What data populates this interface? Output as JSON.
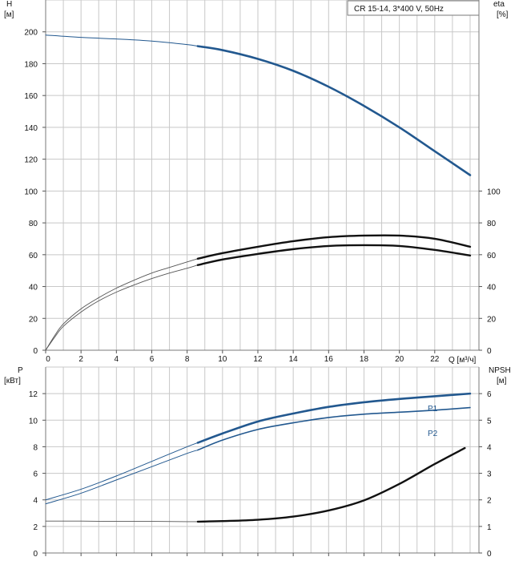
{
  "header": {
    "title": "CR 15-14, 3*400 V, 50Hz"
  },
  "colors": {
    "blue": "#22588f",
    "black": "#111111",
    "grey": "#555555",
    "grid": "#c8c8c8"
  },
  "chart_data": [
    {
      "type": "line",
      "name": "head-efficiency",
      "xlabel": "Q [м³/ч]",
      "ylabel_left": "H\n[м]",
      "ylabel_right": "eta\n[%]",
      "x_ticks": [
        0,
        2,
        4,
        6,
        8,
        10,
        12,
        14,
        16,
        18,
        20,
        22
      ],
      "y_left_ticks": [
        0,
        20,
        40,
        60,
        80,
        100,
        120,
        140,
        160,
        180,
        200
      ],
      "y_right_ticks": [
        0,
        20,
        40,
        60,
        80,
        100
      ],
      "xlim": [
        0,
        24.5
      ],
      "ylim_left": [
        0,
        220
      ],
      "ylim_right": [
        0,
        220
      ],
      "grid": true,
      "series": [
        {
          "key": "H-extrapolated",
          "axis": "left",
          "style": "thin-blue",
          "x": [
            0,
            2,
            4,
            6,
            8,
            8.6
          ],
          "y": [
            198,
            196.5,
            195.5,
            194.2,
            192,
            191
          ]
        },
        {
          "key": "H",
          "axis": "left",
          "style": "thick-blue",
          "x": [
            8.6,
            10,
            12,
            14,
            16,
            18,
            20,
            22,
            24
          ],
          "y": [
            191,
            188.5,
            183,
            175.5,
            165.5,
            153.5,
            140,
            125,
            110
          ]
        },
        {
          "key": "eta-pump-extrapolated",
          "axis": "right",
          "style": "thin-black",
          "x": [
            0,
            0.5,
            1,
            2,
            3,
            4,
            5,
            6,
            7,
            8,
            8.6
          ],
          "y": [
            0,
            9,
            16.5,
            26,
            33,
            39,
            44,
            48.5,
            52,
            55.5,
            57.5
          ]
        },
        {
          "key": "eta-pump",
          "axis": "right",
          "style": "thick-black",
          "x": [
            8.6,
            10,
            12,
            14,
            16,
            18,
            20,
            22,
            24
          ],
          "y": [
            57.5,
            61,
            65,
            68.5,
            71,
            72,
            72,
            70,
            65
          ]
        },
        {
          "key": "eta-total-extrapolated",
          "axis": "right",
          "style": "thin-black",
          "x": [
            0,
            0.5,
            1,
            2,
            3,
            4,
            5,
            6,
            7,
            8,
            8.6
          ],
          "y": [
            0,
            8,
            15,
            24,
            31,
            36.5,
            41,
            45,
            48.5,
            51.5,
            53.5
          ]
        },
        {
          "key": "eta-total",
          "axis": "right",
          "style": "thick-black",
          "x": [
            8.6,
            10,
            12,
            14,
            16,
            18,
            20,
            22,
            24
          ],
          "y": [
            53.5,
            57,
            60.5,
            63.5,
            65.5,
            66,
            65.5,
            63,
            59.5
          ]
        }
      ]
    },
    {
      "type": "line",
      "name": "power-npsh",
      "ylabel_left": "P\n[кВт]",
      "ylabel_right": "NPSH\n[м]",
      "x_ticks": [
        0,
        2,
        4,
        6,
        8,
        10,
        12,
        14,
        16,
        18,
        20,
        22
      ],
      "y_left_ticks": [
        0,
        2,
        4,
        6,
        8,
        10,
        12
      ],
      "y_right_ticks": [
        0,
        1,
        2,
        3,
        4,
        5,
        6
      ],
      "xlim": [
        0,
        24.5
      ],
      "ylim_left": [
        0,
        14
      ],
      "ylim_right": [
        0,
        7
      ],
      "grid": true,
      "series": [
        {
          "key": "P1-extrapolated",
          "name": "P1",
          "axis": "left",
          "style": "thin-blue",
          "x": [
            0,
            2,
            4,
            6,
            8,
            8.6
          ],
          "y": [
            4.0,
            4.8,
            5.8,
            6.9,
            8.0,
            8.3
          ]
        },
        {
          "key": "P1",
          "name": "P1",
          "axis": "left",
          "style": "thick-blue",
          "x": [
            8.6,
            10,
            12,
            14,
            16,
            18,
            20,
            22,
            24
          ],
          "y": [
            8.3,
            9.0,
            9.9,
            10.5,
            11.0,
            11.35,
            11.6,
            11.8,
            12.0
          ]
        },
        {
          "key": "P2-extrapolated",
          "name": "P2",
          "axis": "left",
          "style": "thin-blue",
          "x": [
            0,
            2,
            4,
            6,
            8,
            8.6
          ],
          "y": [
            3.7,
            4.5,
            5.5,
            6.5,
            7.5,
            7.75
          ]
        },
        {
          "key": "P2",
          "name": "P2",
          "axis": "left",
          "style": "medium-blue",
          "x": [
            8.6,
            10,
            12,
            14,
            16,
            18,
            20,
            22,
            24
          ],
          "y": [
            7.75,
            8.5,
            9.3,
            9.8,
            10.2,
            10.45,
            10.6,
            10.75,
            10.95
          ]
        },
        {
          "key": "NPSH-extrapolated",
          "axis": "right",
          "style": "thin-grey",
          "x": [
            0,
            2,
            4,
            6,
            8,
            8.6
          ],
          "y": [
            1.2,
            1.2,
            1.19,
            1.19,
            1.18,
            1.18
          ]
        },
        {
          "key": "NPSH",
          "axis": "right",
          "style": "thick-black",
          "x": [
            8.6,
            10,
            12,
            14,
            16,
            18,
            20,
            22,
            23.7
          ],
          "y": [
            1.18,
            1.2,
            1.25,
            1.37,
            1.6,
            1.98,
            2.6,
            3.35,
            3.95
          ]
        }
      ]
    }
  ]
}
